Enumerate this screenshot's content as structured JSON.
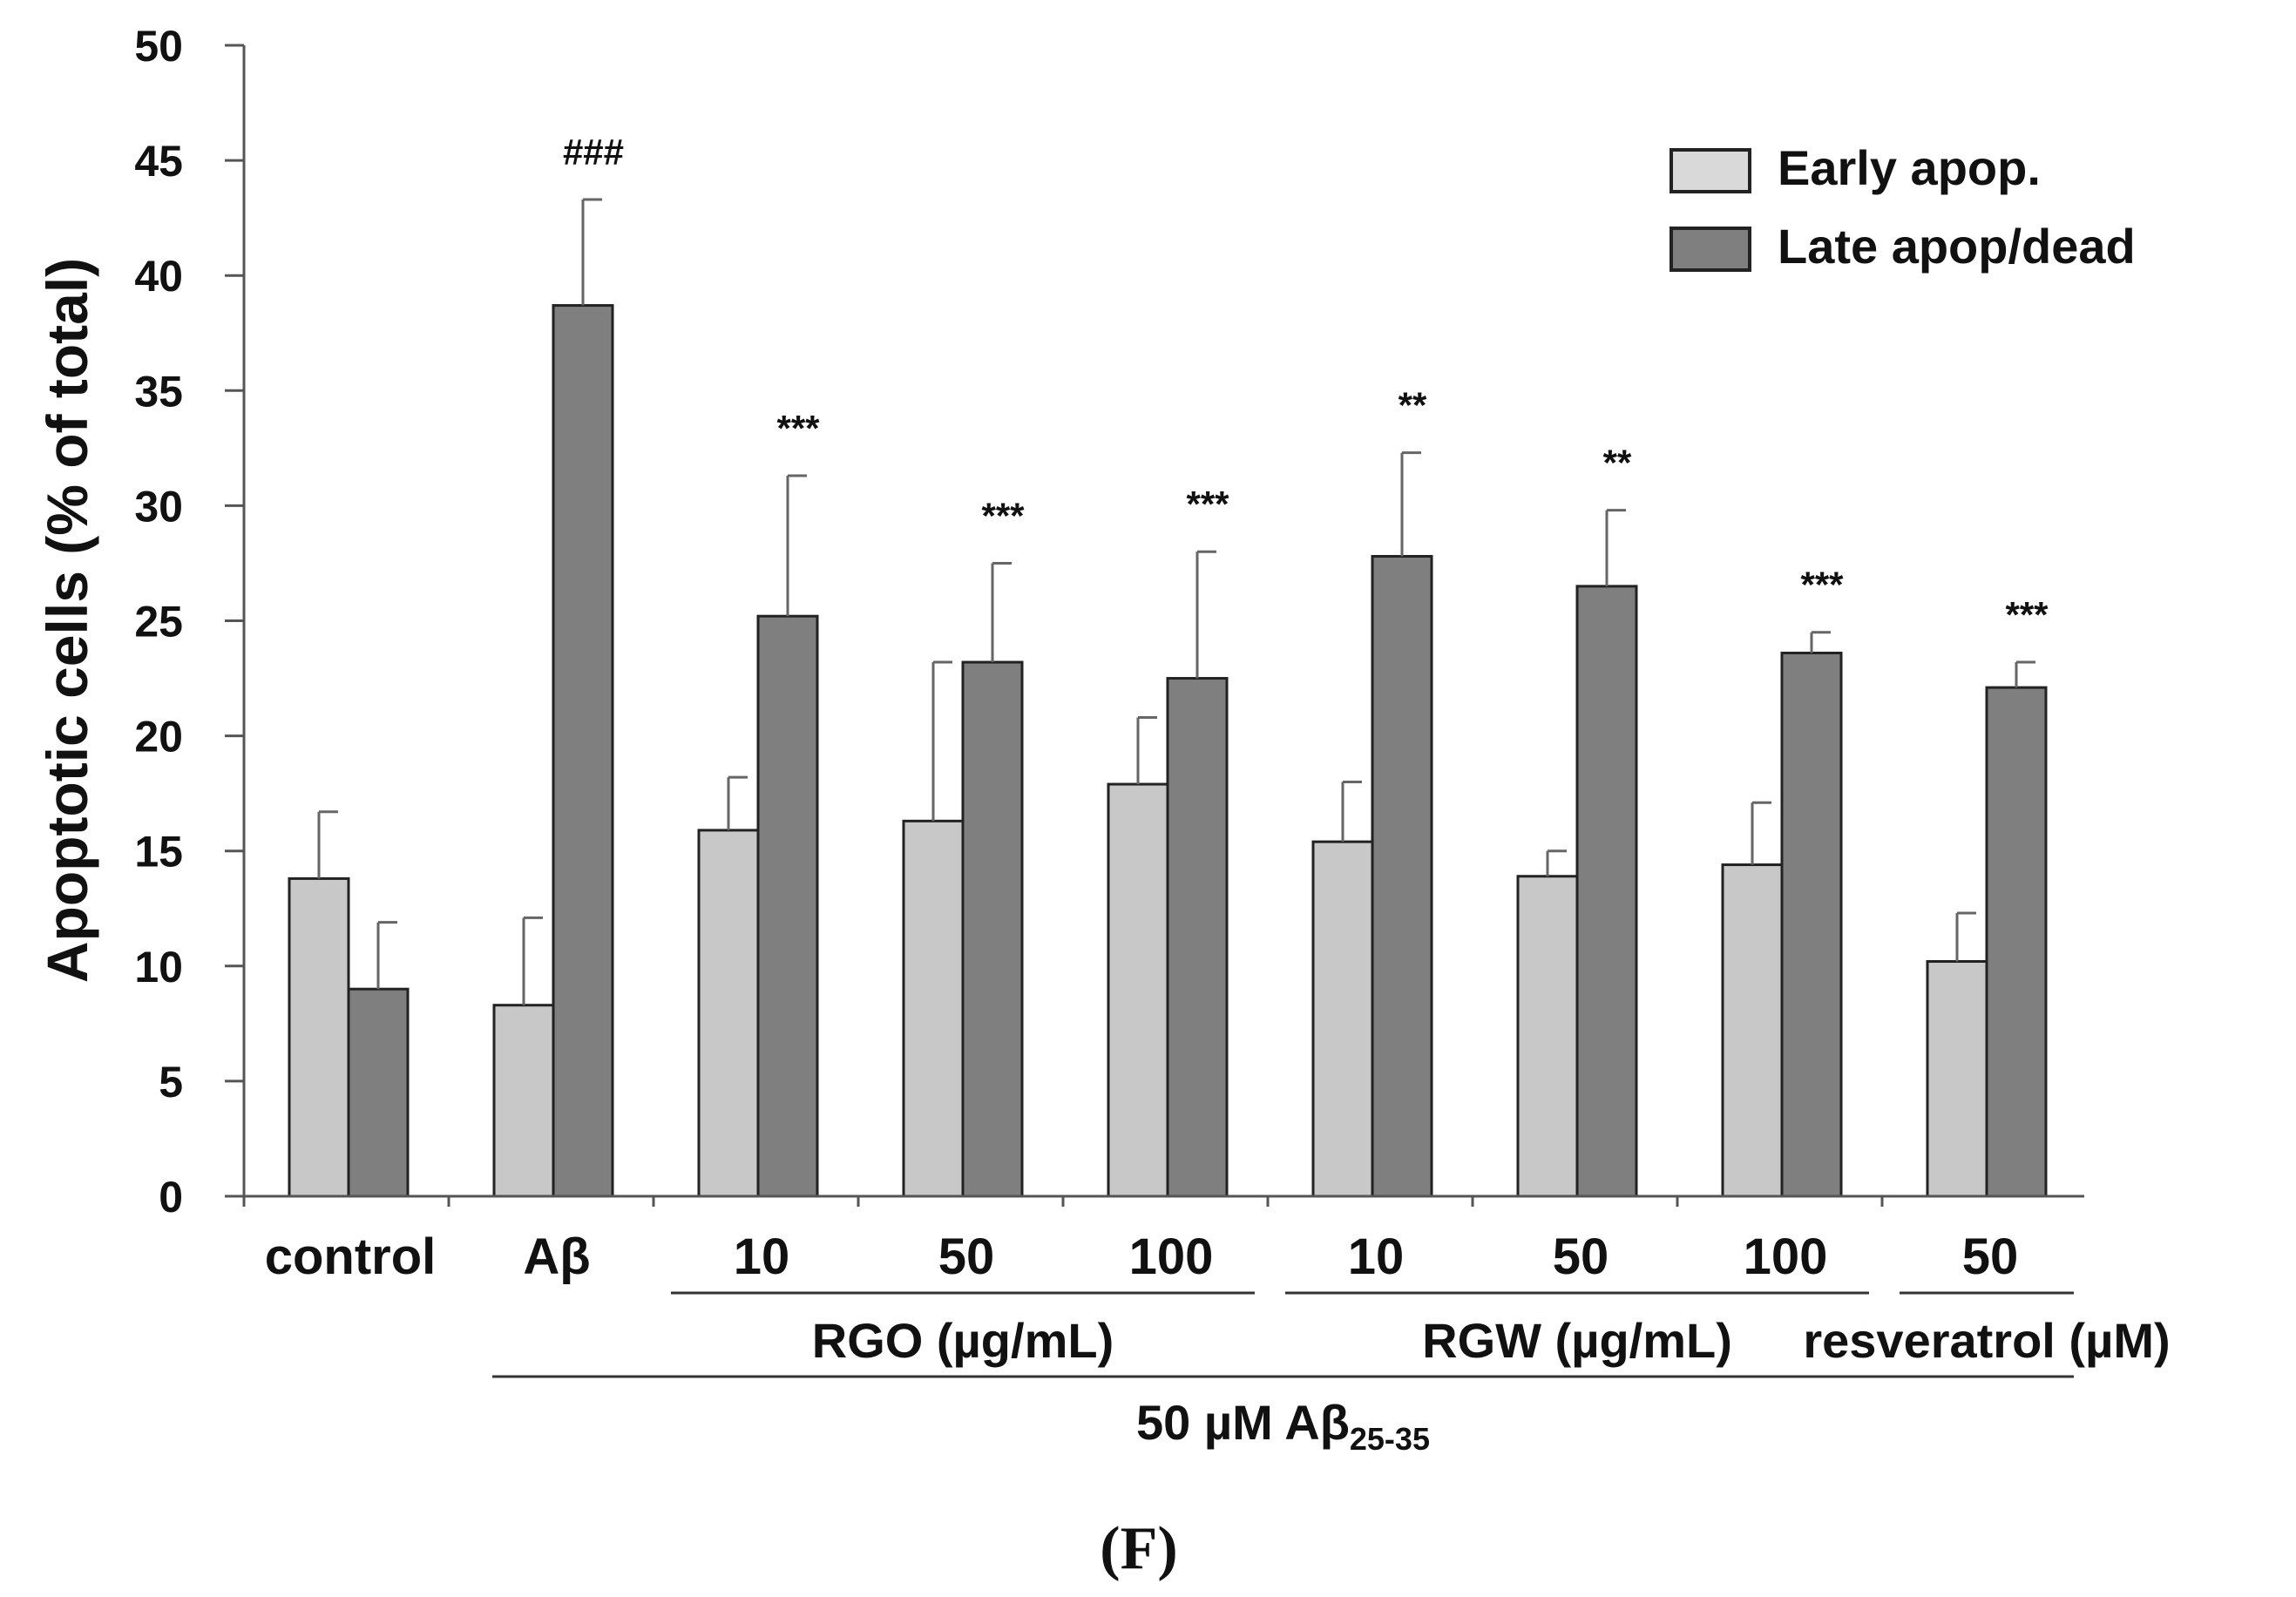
{
  "chart_data": {
    "type": "bar",
    "ylabel": "Apoptotic cells (% of total)",
    "ylim": [
      0,
      50
    ],
    "yticks": [
      0,
      5,
      10,
      15,
      20,
      25,
      30,
      35,
      40,
      45,
      50
    ],
    "categories": [
      "control",
      "Aβ",
      "10",
      "50",
      "100",
      "10",
      "50",
      "100",
      "50"
    ],
    "series": [
      {
        "name": "Early apop.",
        "color": "#c8c8c8",
        "values": [
          13.8,
          8.3,
          15.9,
          16.3,
          17.9,
          15.4,
          13.9,
          14.4,
          10.2
        ],
        "errors": [
          2.9,
          3.8,
          2.3,
          6.9,
          2.9,
          2.6,
          1.1,
          2.7,
          2.1
        ]
      },
      {
        "name": "Late apop/dead",
        "color": "#7f7f7f",
        "values": [
          9.0,
          38.7,
          25.2,
          23.2,
          22.5,
          27.8,
          26.5,
          23.6,
          22.1
        ],
        "errors": [
          2.9,
          4.6,
          6.1,
          4.3,
          5.5,
          4.5,
          3.3,
          0.9,
          1.1
        ]
      }
    ],
    "annotations": [
      "",
      "###",
      "***",
      "***",
      "***",
      "**",
      "**",
      "***",
      "***"
    ],
    "groups": [
      {
        "label": "RGO (µg/mL)",
        "from": 2,
        "to": 4
      },
      {
        "label": "RGW (µg/mL)",
        "from": 5,
        "to": 7
      },
      {
        "label": "resveratrol (µM)",
        "from": 8,
        "to": 8
      }
    ],
    "treatment": {
      "label": "50 µM Aβ",
      "subscript": "25-35",
      "from": 1,
      "to": 8
    }
  },
  "panel_label": "(F)"
}
